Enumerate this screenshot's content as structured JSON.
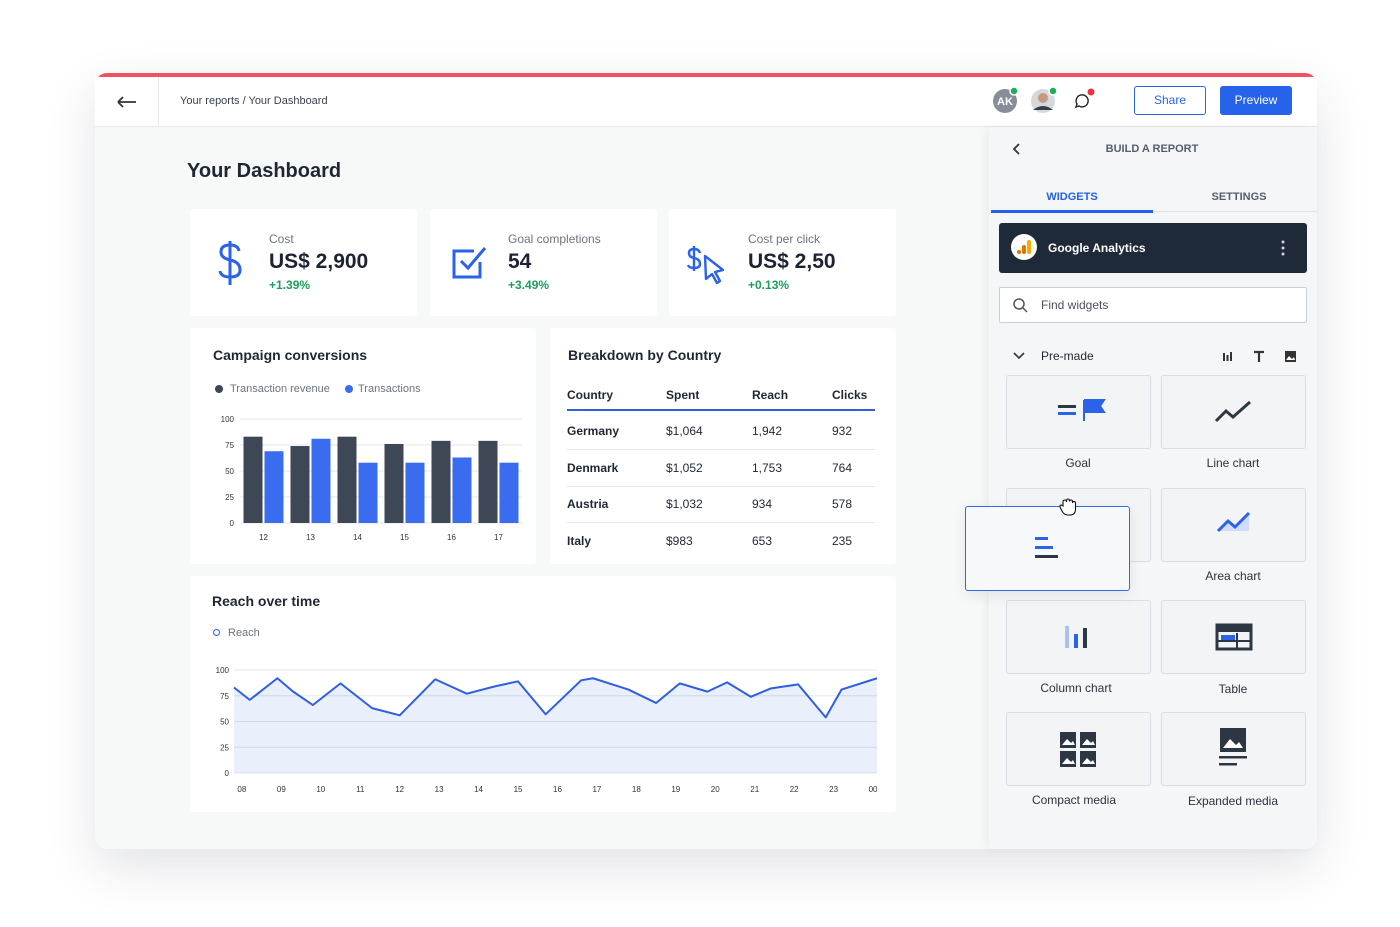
{
  "topbar": {
    "breadcrumb": "Your reports / Your Dashboard",
    "avatar_initials": "AK",
    "share": "Share",
    "preview": "Preview"
  },
  "dashboard": {
    "title": "Your Dashboard",
    "kpis": [
      {
        "label": "Cost",
        "value": "US$ 2,900",
        "change": "+1.39%"
      },
      {
        "label": "Goal completions",
        "value": "54",
        "change": "+3.49%"
      },
      {
        "label": "Cost per click",
        "value": "US$ 2,50",
        "change": "+0.13%"
      }
    ]
  },
  "table": {
    "title": "Breakdown by Country",
    "columns": [
      "Country",
      "Spent",
      "Reach",
      "Clicks"
    ],
    "rows": [
      [
        "Germany",
        "$1,064",
        "1,942",
        "932"
      ],
      [
        "Denmark",
        "$1,052",
        "1,753",
        "764"
      ],
      [
        "Austria",
        "$1,032",
        "934",
        "578"
      ],
      [
        "Italy",
        "$983",
        "653",
        "235"
      ]
    ]
  },
  "chart_data": [
    {
      "type": "bar",
      "title": "Campaign conversions",
      "categories": [
        "12",
        "13",
        "14",
        "15",
        "16",
        "17"
      ],
      "series": [
        {
          "name": "Transaction revenue",
          "color": "#3d4756",
          "values": [
            83,
            74,
            83,
            76,
            79,
            79
          ]
        },
        {
          "name": "Transactions",
          "color": "#3a6cf0",
          "values": [
            69,
            81,
            58,
            58,
            63,
            58
          ]
        }
      ],
      "ylim": [
        0,
        100
      ],
      "yticks": [
        0,
        25,
        50,
        75,
        100
      ],
      "grid": true
    },
    {
      "type": "line",
      "title": "Reach over time",
      "area": true,
      "x": [
        7.8,
        8.2,
        8.9,
        9.3,
        9.8,
        10.5,
        11.3,
        12.0,
        12.9,
        13.7,
        14.4,
        15.0,
        15.7,
        16.6,
        16.9,
        17.8,
        18.5,
        19.1,
        19.8,
        20.3,
        20.9,
        21.4,
        22.1,
        22.8,
        23.2,
        24.1
      ],
      "series": [
        {
          "name": "Reach",
          "color": "#2f5fe0",
          "values": [
            83,
            71,
            92,
            79,
            66,
            87,
            63,
            56,
            91,
            77,
            84,
            89,
            57,
            90,
            92,
            81,
            68,
            87,
            79,
            88,
            74,
            82,
            86,
            54,
            81,
            92
          ]
        }
      ],
      "xlim": [
        7.8,
        24.1
      ],
      "xticks": [
        {
          "value": 8,
          "label": "08"
        },
        {
          "value": 9,
          "label": "09"
        },
        10,
        11,
        12,
        13,
        14,
        15,
        16,
        17,
        18,
        19,
        20,
        21,
        22,
        23,
        {
          "value": 24,
          "label": "00"
        }
      ],
      "ylim": [
        0,
        100
      ],
      "yticks": [
        0,
        25,
        50,
        75,
        100
      ],
      "grid": true
    }
  ],
  "panel": {
    "title": "BUILD A REPORT",
    "tabs": [
      "WIDGETS",
      "SETTINGS"
    ],
    "source": "Google Analytics",
    "search_placeholder": "Find widgets",
    "section": "Pre-made",
    "widgets": [
      "Goal",
      "Line chart",
      "Area chart",
      "Column chart",
      "Table",
      "Compact media",
      "Expanded media"
    ]
  }
}
